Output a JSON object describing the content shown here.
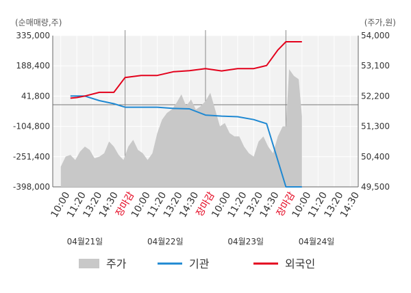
{
  "chart_data": {
    "type": "line",
    "left_axis_unit": "(순매매량,주)",
    "right_axis_unit": "(주가,원)",
    "left_ticks": [
      "335,000",
      "188,400",
      "41,800",
      "-104,800",
      "-251,400",
      "-398,000"
    ],
    "right_ticks": [
      "54,000",
      "53,100",
      "52,200",
      "51,300",
      "50,400",
      "49,500"
    ],
    "left_range": [
      -398000,
      335000
    ],
    "right_range": [
      49500,
      54000
    ],
    "x_labels": [
      "10:00",
      "11:20",
      "13:20",
      "14:30",
      "장마감",
      "10:00",
      "11:20",
      "13:20",
      "14:30",
      "장마감",
      "10:00",
      "11:20",
      "13:20",
      "14:30",
      "장마감",
      "10:00",
      "11:20",
      "13:20",
      "14:30"
    ],
    "close_label": "장마감",
    "dates": [
      "04월21일",
      "04월22일",
      "04월23일",
      "04월24일"
    ],
    "legend": [
      {
        "name": "주가",
        "color": "#c8c8c8"
      },
      {
        "name": "기관",
        "color": "#1e88d2"
      },
      {
        "name": "외국인",
        "color": "#e3001b"
      }
    ],
    "grid": true,
    "series": [
      {
        "name": "기관",
        "color": "#1e88d2",
        "axis": "left",
        "x": [
          0.6,
          1.5,
          2.4,
          3.3,
          4.0,
          5.0,
          6.0,
          7.0,
          8.0,
          9.0,
          10.0,
          11.0,
          12.0,
          12.8,
          14.0,
          15.0
        ],
        "values": [
          42000,
          42000,
          20000,
          5000,
          -12000,
          -12000,
          -12000,
          -18000,
          -20000,
          -50000,
          -55000,
          -58000,
          -72000,
          -92000,
          -398000,
          -398000
        ]
      },
      {
        "name": "외국인",
        "color": "#e3001b",
        "axis": "left",
        "x": [
          0.6,
          1.0,
          1.5,
          2.4,
          3.3,
          4.0,
          5.0,
          6.0,
          7.0,
          8.0,
          9.0,
          10.0,
          11.0,
          12.0,
          12.8,
          13.5,
          14.0,
          15.0
        ],
        "values": [
          32000,
          35000,
          42000,
          60000,
          60000,
          132000,
          142000,
          142000,
          160000,
          165000,
          175000,
          164000,
          175000,
          175000,
          190000,
          265000,
          305000,
          305000
        ]
      }
    ],
    "price": {
      "name": "주가",
      "color": "#c8c8c8",
      "axis": "right",
      "x": [
        0.0,
        0.3,
        0.6,
        0.9,
        1.2,
        1.5,
        1.8,
        2.1,
        2.4,
        2.7,
        3.0,
        3.3,
        3.6,
        3.9,
        4.2,
        4.5,
        4.8,
        5.1,
        5.4,
        5.7,
        6.0,
        6.3,
        6.6,
        6.9,
        7.2,
        7.5,
        7.8,
        8.1,
        8.4,
        8.7,
        9.0,
        9.3,
        9.6,
        9.9,
        10.2,
        10.5,
        10.8,
        11.1,
        11.4,
        11.7,
        12.0,
        12.3,
        12.6,
        12.9,
        13.2,
        13.5,
        13.8,
        14.0,
        14.2,
        14.5,
        14.8,
        15.0
      ],
      "values": [
        50100,
        50400,
        50450,
        50300,
        50550,
        50700,
        50600,
        50350,
        50400,
        50500,
        50850,
        50700,
        50450,
        50300,
        50700,
        50900,
        50600,
        50500,
        50300,
        50500,
        51100,
        51500,
        51700,
        51800,
        52000,
        52250,
        51900,
        52100,
        51800,
        51900,
        52050,
        52300,
        51800,
        51300,
        51400,
        51100,
        51000,
        51000,
        50700,
        50500,
        50400,
        50850,
        51000,
        50700,
        50500,
        51000,
        51300,
        51300,
        53000,
        52800,
        52700,
        51600
      ]
    }
  }
}
